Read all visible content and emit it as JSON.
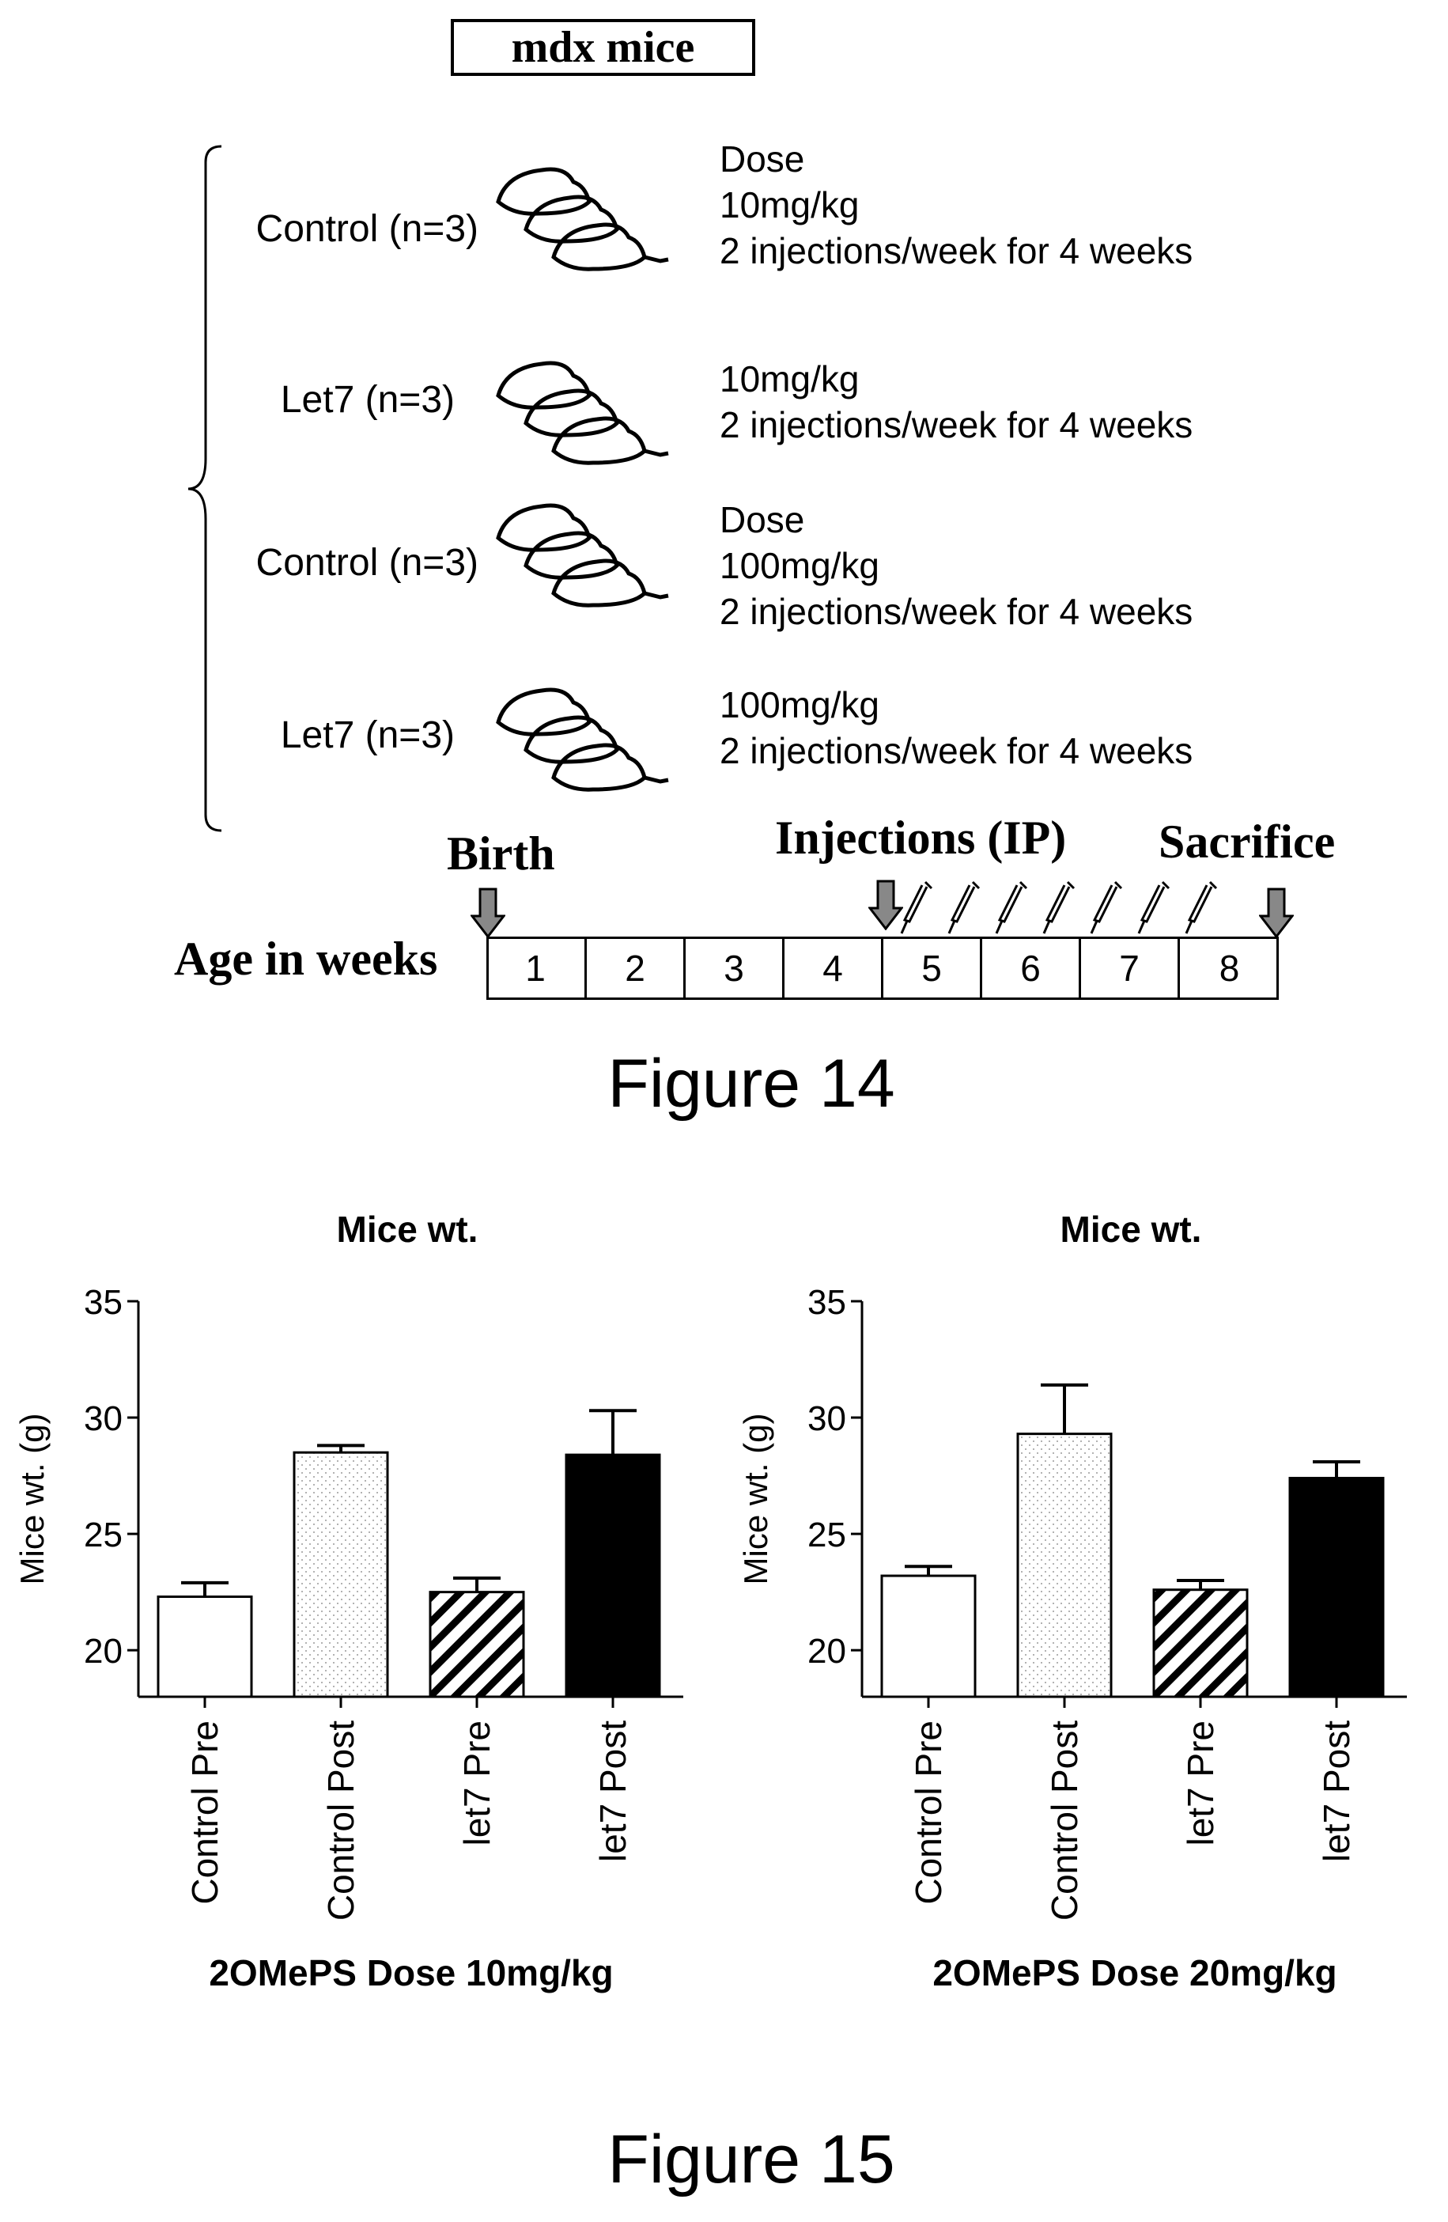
{
  "figure14": {
    "title": "mdx mice",
    "groups": [
      {
        "label": "Control (n=3)",
        "dose_lines": [
          "Dose",
          "10mg/kg",
          "2 injections/week for 4 weeks"
        ]
      },
      {
        "label": "Let7 (n=3)",
        "dose_lines": [
          "10mg/kg",
          "2 injections/week for 4 weeks"
        ]
      },
      {
        "label": "Control (n=3)",
        "dose_lines": [
          "Dose",
          "100mg/kg",
          "2 injections/week for 4 weeks"
        ]
      },
      {
        "label": "Let7 (n=3)",
        "dose_lines": [
          "100mg/kg",
          "2 injections/week for 4 weeks"
        ]
      }
    ],
    "timeline": {
      "birth_label": "Birth",
      "injections_label": "Injections (IP)",
      "sacrifice_label": "Sacrifice",
      "axis_label": "Age in weeks",
      "weeks": [
        "1",
        "2",
        "3",
        "4",
        "5",
        "6",
        "7",
        "8"
      ]
    },
    "caption": "Figure 14"
  },
  "figure15": {
    "caption": "Figure 15"
  },
  "chart_data": [
    {
      "type": "bar",
      "title": "Mice wt.",
      "ylabel": "Mice wt. (g)",
      "xlabel": "2OMePS Dose 10mg/kg",
      "categories": [
        "Control Pre",
        "Control Post",
        "let7 Pre",
        "let7 Post"
      ],
      "values": [
        22.3,
        28.5,
        22.5,
        28.4
      ],
      "errors": [
        0.6,
        0.3,
        0.6,
        1.9
      ],
      "fills": [
        "white",
        "dotted",
        "hatched",
        "black"
      ],
      "yticks": [
        20,
        25,
        30,
        35
      ],
      "ylim": [
        18,
        35
      ]
    },
    {
      "type": "bar",
      "title": "Mice wt.",
      "ylabel": "Mice wt. (g)",
      "xlabel": "2OMePS Dose 20mg/kg",
      "categories": [
        "Control Pre",
        "Control Post",
        "let7 Pre",
        "let7 Post"
      ],
      "values": [
        23.2,
        29.3,
        22.6,
        27.4
      ],
      "errors": [
        0.4,
        2.1,
        0.4,
        0.7
      ],
      "fills": [
        "white",
        "dotted",
        "hatched",
        "black"
      ],
      "yticks": [
        20,
        25,
        30,
        35
      ],
      "ylim": [
        18,
        35
      ]
    }
  ]
}
